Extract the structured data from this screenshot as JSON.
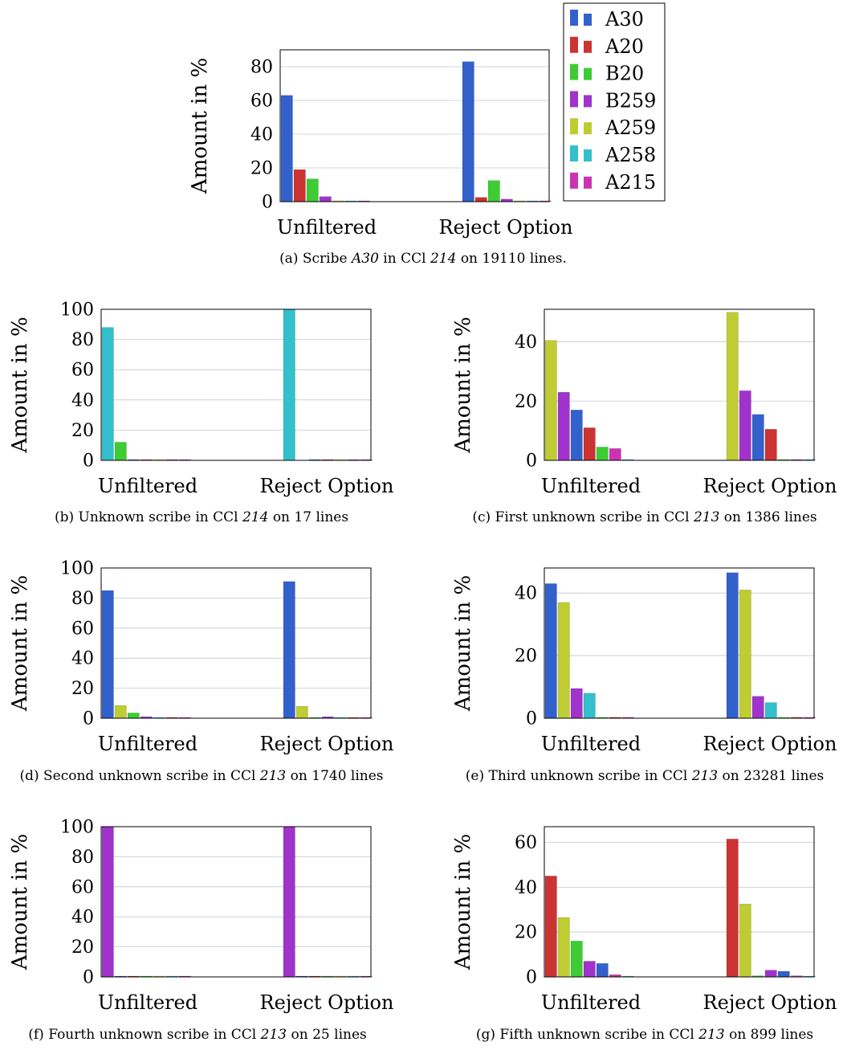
{
  "legend": [
    {
      "name": "A30",
      "color": "#3361cc"
    },
    {
      "name": "A20",
      "color": "#cc3333"
    },
    {
      "name": "B20",
      "color": "#3dcc33"
    },
    {
      "name": "B259",
      "color": "#a033cc"
    },
    {
      "name": "A259",
      "color": "#bfcc33"
    },
    {
      "name": "A258",
      "color": "#33bfcc"
    },
    {
      "name": "A215",
      "color": "#cc33b3"
    }
  ],
  "chart_data": [
    {
      "id": "a",
      "type": "bar",
      "ylabel": "Amount in %",
      "ylim": [
        0,
        90
      ],
      "yticks": [
        0,
        20,
        40,
        60,
        80
      ],
      "categories": [
        "Unfiltered",
        "Reject Option"
      ],
      "caption": {
        "prefix": "(a) Scribe ",
        "em1": "A30",
        "mid": " in CCl ",
        "em2": "214",
        "suffix": " on 19110 lines."
      },
      "series": [
        {
          "name": "A30",
          "values": [
            63,
            83
          ]
        },
        {
          "name": "A20",
          "values": [
            19,
            2.5
          ]
        },
        {
          "name": "B20",
          "values": [
            13.5,
            12.5
          ]
        },
        {
          "name": "B259",
          "values": [
            3,
            1.5
          ]
        },
        {
          "name": "A259",
          "values": [
            0.3,
            0.3
          ]
        },
        {
          "name": "A258",
          "values": [
            0.3,
            0.3
          ]
        },
        {
          "name": "A215",
          "values": [
            0.3,
            0.3
          ]
        }
      ]
    },
    {
      "id": "b",
      "type": "bar",
      "ylabel": "Amount in %",
      "ylim": [
        0,
        100
      ],
      "yticks": [
        0,
        20,
        40,
        60,
        80,
        100
      ],
      "categories": [
        "Unfiltered",
        "Reject Option"
      ],
      "caption": {
        "prefix": "(b) Unknown scribe in CCl ",
        "em1": "214",
        "mid": " on 17 lines",
        "em2": "",
        "suffix": ""
      },
      "series": [
        {
          "name": "A258",
          "values": [
            88,
            100
          ]
        },
        {
          "name": "B20",
          "values": [
            12,
            0
          ]
        },
        {
          "name": "A30",
          "values": [
            0.3,
            0.3
          ]
        },
        {
          "name": "A20",
          "values": [
            0.3,
            0.3
          ]
        },
        {
          "name": "A259",
          "values": [
            0.3,
            0.3
          ]
        },
        {
          "name": "B259",
          "values": [
            0.3,
            0.3
          ]
        },
        {
          "name": "A215",
          "values": [
            0.3,
            0.3
          ]
        }
      ]
    },
    {
      "id": "c",
      "type": "bar",
      "ylabel": "Amount in %",
      "ylim": [
        0,
        51
      ],
      "yticks": [
        0,
        20,
        40
      ],
      "categories": [
        "Unfiltered",
        "Reject Option"
      ],
      "caption": {
        "prefix": "(c) First unknown scribe in CCl ",
        "em1": "213",
        "mid": " on 1386 lines",
        "em2": "",
        "suffix": ""
      },
      "series": [
        {
          "name": "A259",
          "values": [
            40.5,
            50
          ]
        },
        {
          "name": "B259",
          "values": [
            23,
            23.5
          ]
        },
        {
          "name": "A30",
          "values": [
            17,
            15.5
          ]
        },
        {
          "name": "A20",
          "values": [
            11,
            10.5
          ]
        },
        {
          "name": "B20",
          "values": [
            4.5,
            0.3
          ]
        },
        {
          "name": "A215",
          "values": [
            4,
            0.3
          ]
        },
        {
          "name": "A258",
          "values": [
            0.3,
            0.3
          ]
        }
      ]
    },
    {
      "id": "d",
      "type": "bar",
      "ylabel": "Amount in %",
      "ylim": [
        0,
        100
      ],
      "yticks": [
        0,
        20,
        40,
        60,
        80,
        100
      ],
      "categories": [
        "Unfiltered",
        "Reject Option"
      ],
      "caption": {
        "prefix": "(d) Second unknown scribe in CCl ",
        "em1": "213",
        "mid": " on 1740 lines",
        "em2": "",
        "suffix": ""
      },
      "series": [
        {
          "name": "A30",
          "values": [
            85,
            91
          ]
        },
        {
          "name": "A259",
          "values": [
            8.5,
            8
          ]
        },
        {
          "name": "B20",
          "values": [
            3.5,
            0.3
          ]
        },
        {
          "name": "B259",
          "values": [
            1,
            1
          ]
        },
        {
          "name": "A258",
          "values": [
            0.5,
            0.3
          ]
        },
        {
          "name": "A20",
          "values": [
            0.3,
            0.3
          ]
        },
        {
          "name": "A215",
          "values": [
            0.3,
            0.3
          ]
        }
      ]
    },
    {
      "id": "e",
      "type": "bar",
      "ylabel": "Amount in %",
      "ylim": [
        0,
        48
      ],
      "yticks": [
        0,
        20,
        40
      ],
      "categories": [
        "Unfiltered",
        "Reject Option"
      ],
      "caption": {
        "prefix": "(e) Third unknown scribe in CCl ",
        "em1": "213",
        "mid": " on 23281 lines",
        "em2": "",
        "suffix": ""
      },
      "series": [
        {
          "name": "A30",
          "values": [
            43,
            46.5
          ]
        },
        {
          "name": "A259",
          "values": [
            37,
            41
          ]
        },
        {
          "name": "B259",
          "values": [
            9.5,
            7
          ]
        },
        {
          "name": "A258",
          "values": [
            8,
            5
          ]
        },
        {
          "name": "B20",
          "values": [
            0.3,
            0.3
          ]
        },
        {
          "name": "A20",
          "values": [
            0.3,
            0.3
          ]
        },
        {
          "name": "A215",
          "values": [
            0.3,
            0.3
          ]
        }
      ]
    },
    {
      "id": "f",
      "type": "bar",
      "ylabel": "Amount in %",
      "ylim": [
        0,
        100
      ],
      "yticks": [
        0,
        20,
        40,
        60,
        80,
        100
      ],
      "categories": [
        "Unfiltered",
        "Reject Option"
      ],
      "caption": {
        "prefix": "(f) Fourth unknown scribe in CCl ",
        "em1": "213",
        "mid": " on 25 lines",
        "em2": "",
        "suffix": ""
      },
      "series": [
        {
          "name": "B259",
          "values": [
            100,
            100
          ]
        },
        {
          "name": "A30",
          "values": [
            0.3,
            0.3
          ]
        },
        {
          "name": "A20",
          "values": [
            0.3,
            0.3
          ]
        },
        {
          "name": "B20",
          "values": [
            0.3,
            0.3
          ]
        },
        {
          "name": "A259",
          "values": [
            0.3,
            0.3
          ]
        },
        {
          "name": "A258",
          "values": [
            0.3,
            0.3
          ]
        },
        {
          "name": "A215",
          "values": [
            0.3,
            0.3
          ]
        }
      ]
    },
    {
      "id": "g",
      "type": "bar",
      "ylabel": "Amount in %",
      "ylim": [
        0,
        67
      ],
      "yticks": [
        0,
        20,
        40,
        60
      ],
      "categories": [
        "Unfiltered",
        "Reject Option"
      ],
      "caption": {
        "prefix": "(g) Fifth unknown scribe in CCl ",
        "em1": "213",
        "mid": " on 899 lines",
        "em2": "",
        "suffix": ""
      },
      "series": [
        {
          "name": "A20",
          "values": [
            45,
            61.5
          ]
        },
        {
          "name": "A259",
          "values": [
            26.5,
            32.5
          ]
        },
        {
          "name": "B20",
          "values": [
            16,
            0.5
          ]
        },
        {
          "name": "B259",
          "values": [
            7,
            3
          ]
        },
        {
          "name": "A30",
          "values": [
            6,
            2.5
          ]
        },
        {
          "name": "A215",
          "values": [
            1,
            0.5
          ]
        },
        {
          "name": "A258",
          "values": [
            0.3,
            0.3
          ]
        }
      ]
    }
  ]
}
